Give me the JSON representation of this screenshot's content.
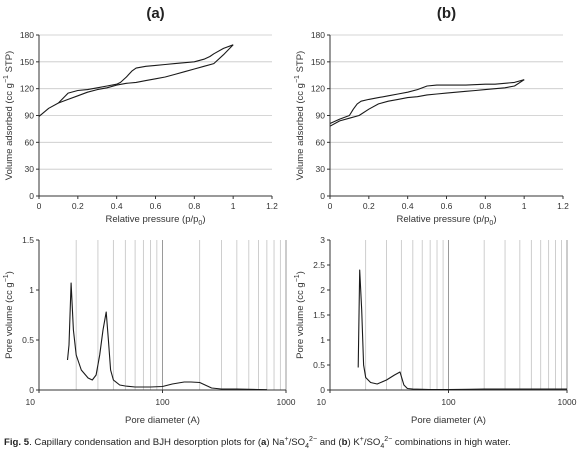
{
  "figure": {
    "caption": {
      "prefix": "Fig. 5",
      "text_1": ". Capillary condensation and BJH desorption plots for (",
      "label_a": "a",
      "text_2": ") Na",
      "text_3": "/SO",
      "text_4": " and (",
      "label_b": "b",
      "text_5": ") K",
      "text_6": "/SO",
      "text_7": " combinations in high water.",
      "sup_plus": "+",
      "sub_4": "4",
      "sup_2minus": "2−"
    }
  },
  "chart_data": [
    {
      "id": "a-isotherm",
      "panel_label": "(a)",
      "type": "line",
      "xlabel": "Relative pressure (p/p0)",
      "xlabel_parts": [
        "Relative pressure (p/p",
        "0",
        ")"
      ],
      "ylabel": "Volume adsorbed (cc g−1 STP)",
      "ylabel_parts": [
        "Volume adsorbed (cc g",
        "−1",
        " STP)"
      ],
      "xlim": [
        0,
        1.2
      ],
      "ylim": [
        0,
        180
      ],
      "xticks": [
        0,
        0.2,
        0.4,
        0.6,
        0.8,
        1,
        1.2
      ],
      "xtick_labels": [
        "0",
        "0.2",
        "0.4",
        "0.6",
        "0.8",
        "1",
        "1.2"
      ],
      "yticks": [
        0,
        30,
        60,
        90,
        120,
        150,
        180
      ],
      "ytick_labels": [
        "0",
        "30",
        "60",
        "90",
        "120",
        "150",
        "180"
      ],
      "grid": "y",
      "series": [
        {
          "x": [
            0,
            0.05,
            0.1,
            0.15,
            0.2,
            0.25,
            0.3,
            0.35,
            0.4,
            0.45,
            0.5,
            0.55,
            0.6,
            0.65,
            0.7,
            0.75,
            0.8,
            0.85,
            0.9,
            0.95,
            1.0
          ],
          "y": [
            89,
            98,
            104,
            108,
            112,
            116,
            119,
            121,
            124,
            126,
            127,
            129,
            131,
            133,
            136,
            139,
            142,
            145,
            148,
            158,
            169
          ]
        },
        {
          "x": [
            1.0,
            0.95,
            0.9,
            0.88,
            0.85,
            0.8,
            0.75,
            0.7,
            0.65,
            0.6,
            0.55,
            0.5,
            0.48,
            0.45,
            0.42,
            0.4,
            0.35,
            0.3,
            0.25,
            0.2,
            0.15,
            0.1
          ],
          "y": [
            169,
            165,
            159,
            156,
            153,
            150,
            149,
            148,
            147,
            146,
            145,
            143,
            140,
            133,
            127,
            125,
            123,
            121,
            119,
            118,
            115,
            104
          ]
        }
      ]
    },
    {
      "id": "b-isotherm",
      "panel_label": "(b)",
      "type": "line",
      "xlabel": "Relative pressure (p/p0)",
      "xlabel_parts": [
        "Relative pressure (p/p",
        "0",
        ")"
      ],
      "ylabel": "Volume adsorbed (cc g−1 STP)",
      "ylabel_parts": [
        "Volume adsorbed (cc g",
        "−1",
        " STP)"
      ],
      "xlim": [
        0,
        1.2
      ],
      "ylim": [
        0,
        180
      ],
      "xticks": [
        0,
        0.2,
        0.4,
        0.6,
        0.8,
        1,
        1.2
      ],
      "xtick_labels": [
        "0",
        "0.2",
        "0.4",
        "0.6",
        "0.8",
        "1",
        "1.2"
      ],
      "yticks": [
        0,
        30,
        60,
        90,
        120,
        150,
        180
      ],
      "ytick_labels": [
        "0",
        "30",
        "60",
        "90",
        "120",
        "150",
        "180"
      ],
      "grid": "y",
      "series": [
        {
          "x": [
            0,
            0.05,
            0.1,
            0.15,
            0.2,
            0.25,
            0.3,
            0.35,
            0.4,
            0.45,
            0.5,
            0.55,
            0.6,
            0.65,
            0.7,
            0.75,
            0.8,
            0.85,
            0.9,
            0.95,
            1.0
          ],
          "y": [
            78,
            84,
            87,
            90,
            97,
            103,
            106,
            108,
            110,
            111,
            113,
            114,
            115,
            116,
            117,
            118,
            119,
            120,
            121,
            123,
            130
          ]
        },
        {
          "x": [
            1.0,
            0.95,
            0.9,
            0.85,
            0.8,
            0.7,
            0.6,
            0.55,
            0.5,
            0.45,
            0.4,
            0.35,
            0.3,
            0.25,
            0.2,
            0.16,
            0.14,
            0.12,
            0.1,
            0.05,
            0.0
          ],
          "y": [
            130,
            127,
            126,
            125,
            125,
            124,
            124,
            124,
            123,
            119,
            116,
            114,
            112,
            110,
            108,
            106,
            103,
            97,
            90,
            86,
            81
          ]
        }
      ]
    },
    {
      "id": "a-bjh",
      "type": "line",
      "xscale": "log",
      "xlabel": "Pore diameter (A)",
      "ylabel": "Pore volume (cc g−1)",
      "ylabel_parts": [
        "Pore volume (cc g",
        "−1",
        ")"
      ],
      "xlim": [
        10,
        1000
      ],
      "ylim": [
        0,
        1.5
      ],
      "xtick_labels": [
        "10",
        "100",
        "1000"
      ],
      "yticks": [
        0,
        0.5,
        1,
        1.5
      ],
      "ytick_labels": [
        "0",
        "0.5",
        "1",
        "1.5"
      ],
      "grid": "x-log",
      "series": [
        {
          "x": [
            17,
            17.5,
            18.2,
            19,
            20,
            22,
            25,
            27,
            29,
            31,
            33,
            35,
            36.5,
            38,
            40,
            45,
            50,
            60,
            80,
            100,
            120,
            150,
            170,
            200,
            250,
            300,
            400,
            600,
            700
          ],
          "y": [
            0.3,
            0.45,
            1.07,
            0.6,
            0.35,
            0.2,
            0.12,
            0.1,
            0.15,
            0.35,
            0.6,
            0.78,
            0.5,
            0.2,
            0.1,
            0.05,
            0.04,
            0.03,
            0.03,
            0.035,
            0.06,
            0.08,
            0.08,
            0.075,
            0.02,
            0.01,
            0.01,
            0.005,
            0.003
          ]
        }
      ]
    },
    {
      "id": "b-bjh",
      "type": "line",
      "xscale": "log",
      "xlabel": "Pore diameter (A)",
      "ylabel": "Pore volume (cc g−1)",
      "ylabel_parts": [
        "Pore volume (cc g",
        "−1",
        ")"
      ],
      "xlim": [
        10,
        1000
      ],
      "ylim": [
        0,
        3
      ],
      "xtick_labels": [
        "10",
        "100",
        "1000"
      ],
      "yticks": [
        0,
        0.5,
        1,
        1.5,
        2,
        2.5,
        3
      ],
      "ytick_labels": [
        "0",
        "0.5",
        "1",
        "1.5",
        "2",
        "2.5",
        "3"
      ],
      "grid": "x-log",
      "series": [
        {
          "x": [
            17.3,
            17.8,
            18.5,
            19.2,
            20,
            22,
            25,
            30,
            35,
            39,
            42,
            45,
            50,
            70,
            100,
            150,
            200,
            300,
            500,
            1000
          ],
          "y": [
            0.45,
            2.4,
            1.6,
            0.5,
            0.25,
            0.15,
            0.12,
            0.2,
            0.3,
            0.36,
            0.1,
            0.03,
            0.02,
            0.01,
            0.01,
            0.015,
            0.02,
            0.02,
            0.02,
            0.02
          ]
        }
      ]
    }
  ]
}
